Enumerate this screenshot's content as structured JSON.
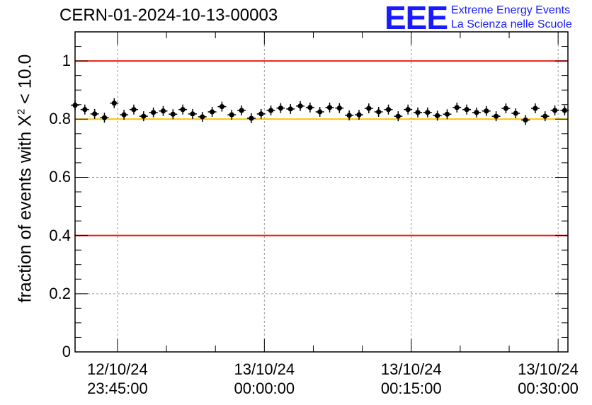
{
  "chart_data": {
    "type": "scatter",
    "title": "CERN-01-2024-10-13-00003",
    "ylabel_prefix": "fraction of events with ",
    "ylabel_symbol": "X",
    "ylabel_sup": "2",
    "ylabel_suffix": " < 10.0",
    "ylim": [
      0,
      1.1
    ],
    "xlim": [
      "2024-10-12 23:40:40",
      "2024-10-13 00:31:00"
    ],
    "yticks": [
      {
        "value": 0,
        "label": "0"
      },
      {
        "value": 0.2,
        "label": "0.2"
      },
      {
        "value": 0.4,
        "label": "0.4"
      },
      {
        "value": 0.6,
        "label": "0.6"
      },
      {
        "value": 0.8,
        "label": "0.8"
      },
      {
        "value": 1,
        "label": "1"
      }
    ],
    "xticks": [
      {
        "value": "2024-10-12 23:45:00",
        "date": "12/10/24",
        "time": "23:45:00"
      },
      {
        "value": "2024-10-13 00:00:00",
        "date": "13/10/24",
        "time": "00:00:00"
      },
      {
        "value": "2024-10-13 00:15:00",
        "date": "13/10/24",
        "time": "00:15:00"
      },
      {
        "value": "2024-10-13 00:30:00",
        "date": "13/10/24",
        "time": "00:30:00"
      }
    ],
    "grid": true,
    "reference_lines": [
      {
        "y": 1.0,
        "color": "#e8201c"
      },
      {
        "y": 0.8,
        "color": "#f5c400"
      },
      {
        "y": 0.4,
        "color": "#e8201c"
      }
    ],
    "x": [
      "23:40:40",
      "23:41:40",
      "23:42:40",
      "23:43:40",
      "23:44:40",
      "23:45:40",
      "23:46:40",
      "23:47:40",
      "23:48:40",
      "23:49:40",
      "23:50:40",
      "23:51:40",
      "23:52:40",
      "23:53:40",
      "23:54:40",
      "23:55:40",
      "23:56:40",
      "23:57:40",
      "23:58:40",
      "23:59:40",
      "00:00:40",
      "00:01:40",
      "00:02:40",
      "00:03:40",
      "00:04:40",
      "00:05:40",
      "00:06:40",
      "00:07:40",
      "00:08:40",
      "00:09:40",
      "00:10:40",
      "00:11:40",
      "00:12:40",
      "00:13:40",
      "00:14:40",
      "00:15:40",
      "00:16:40",
      "00:17:40",
      "00:18:40",
      "00:19:40",
      "00:20:40",
      "00:21:40",
      "00:22:40",
      "00:23:40",
      "00:24:40",
      "00:25:40",
      "00:26:40",
      "00:27:40",
      "00:28:40",
      "00:29:40",
      "00:30:40"
    ],
    "y": [
      0.848,
      0.833,
      0.818,
      0.805,
      0.855,
      0.815,
      0.833,
      0.81,
      0.823,
      0.828,
      0.817,
      0.833,
      0.818,
      0.808,
      0.825,
      0.843,
      0.815,
      0.83,
      0.803,
      0.818,
      0.83,
      0.838,
      0.835,
      0.845,
      0.84,
      0.825,
      0.84,
      0.838,
      0.813,
      0.815,
      0.837,
      0.825,
      0.833,
      0.81,
      0.833,
      0.823,
      0.823,
      0.812,
      0.817,
      0.84,
      0.833,
      0.823,
      0.828,
      0.81,
      0.837,
      0.82,
      0.797,
      0.837,
      0.81,
      0.83,
      0.83
    ],
    "marker_color": "#000000"
  },
  "logo": {
    "mark": "EEE",
    "line1": "Extreme Energy Events",
    "line2": "La Scienza nelle Scuole",
    "color": "#1a1aff"
  }
}
